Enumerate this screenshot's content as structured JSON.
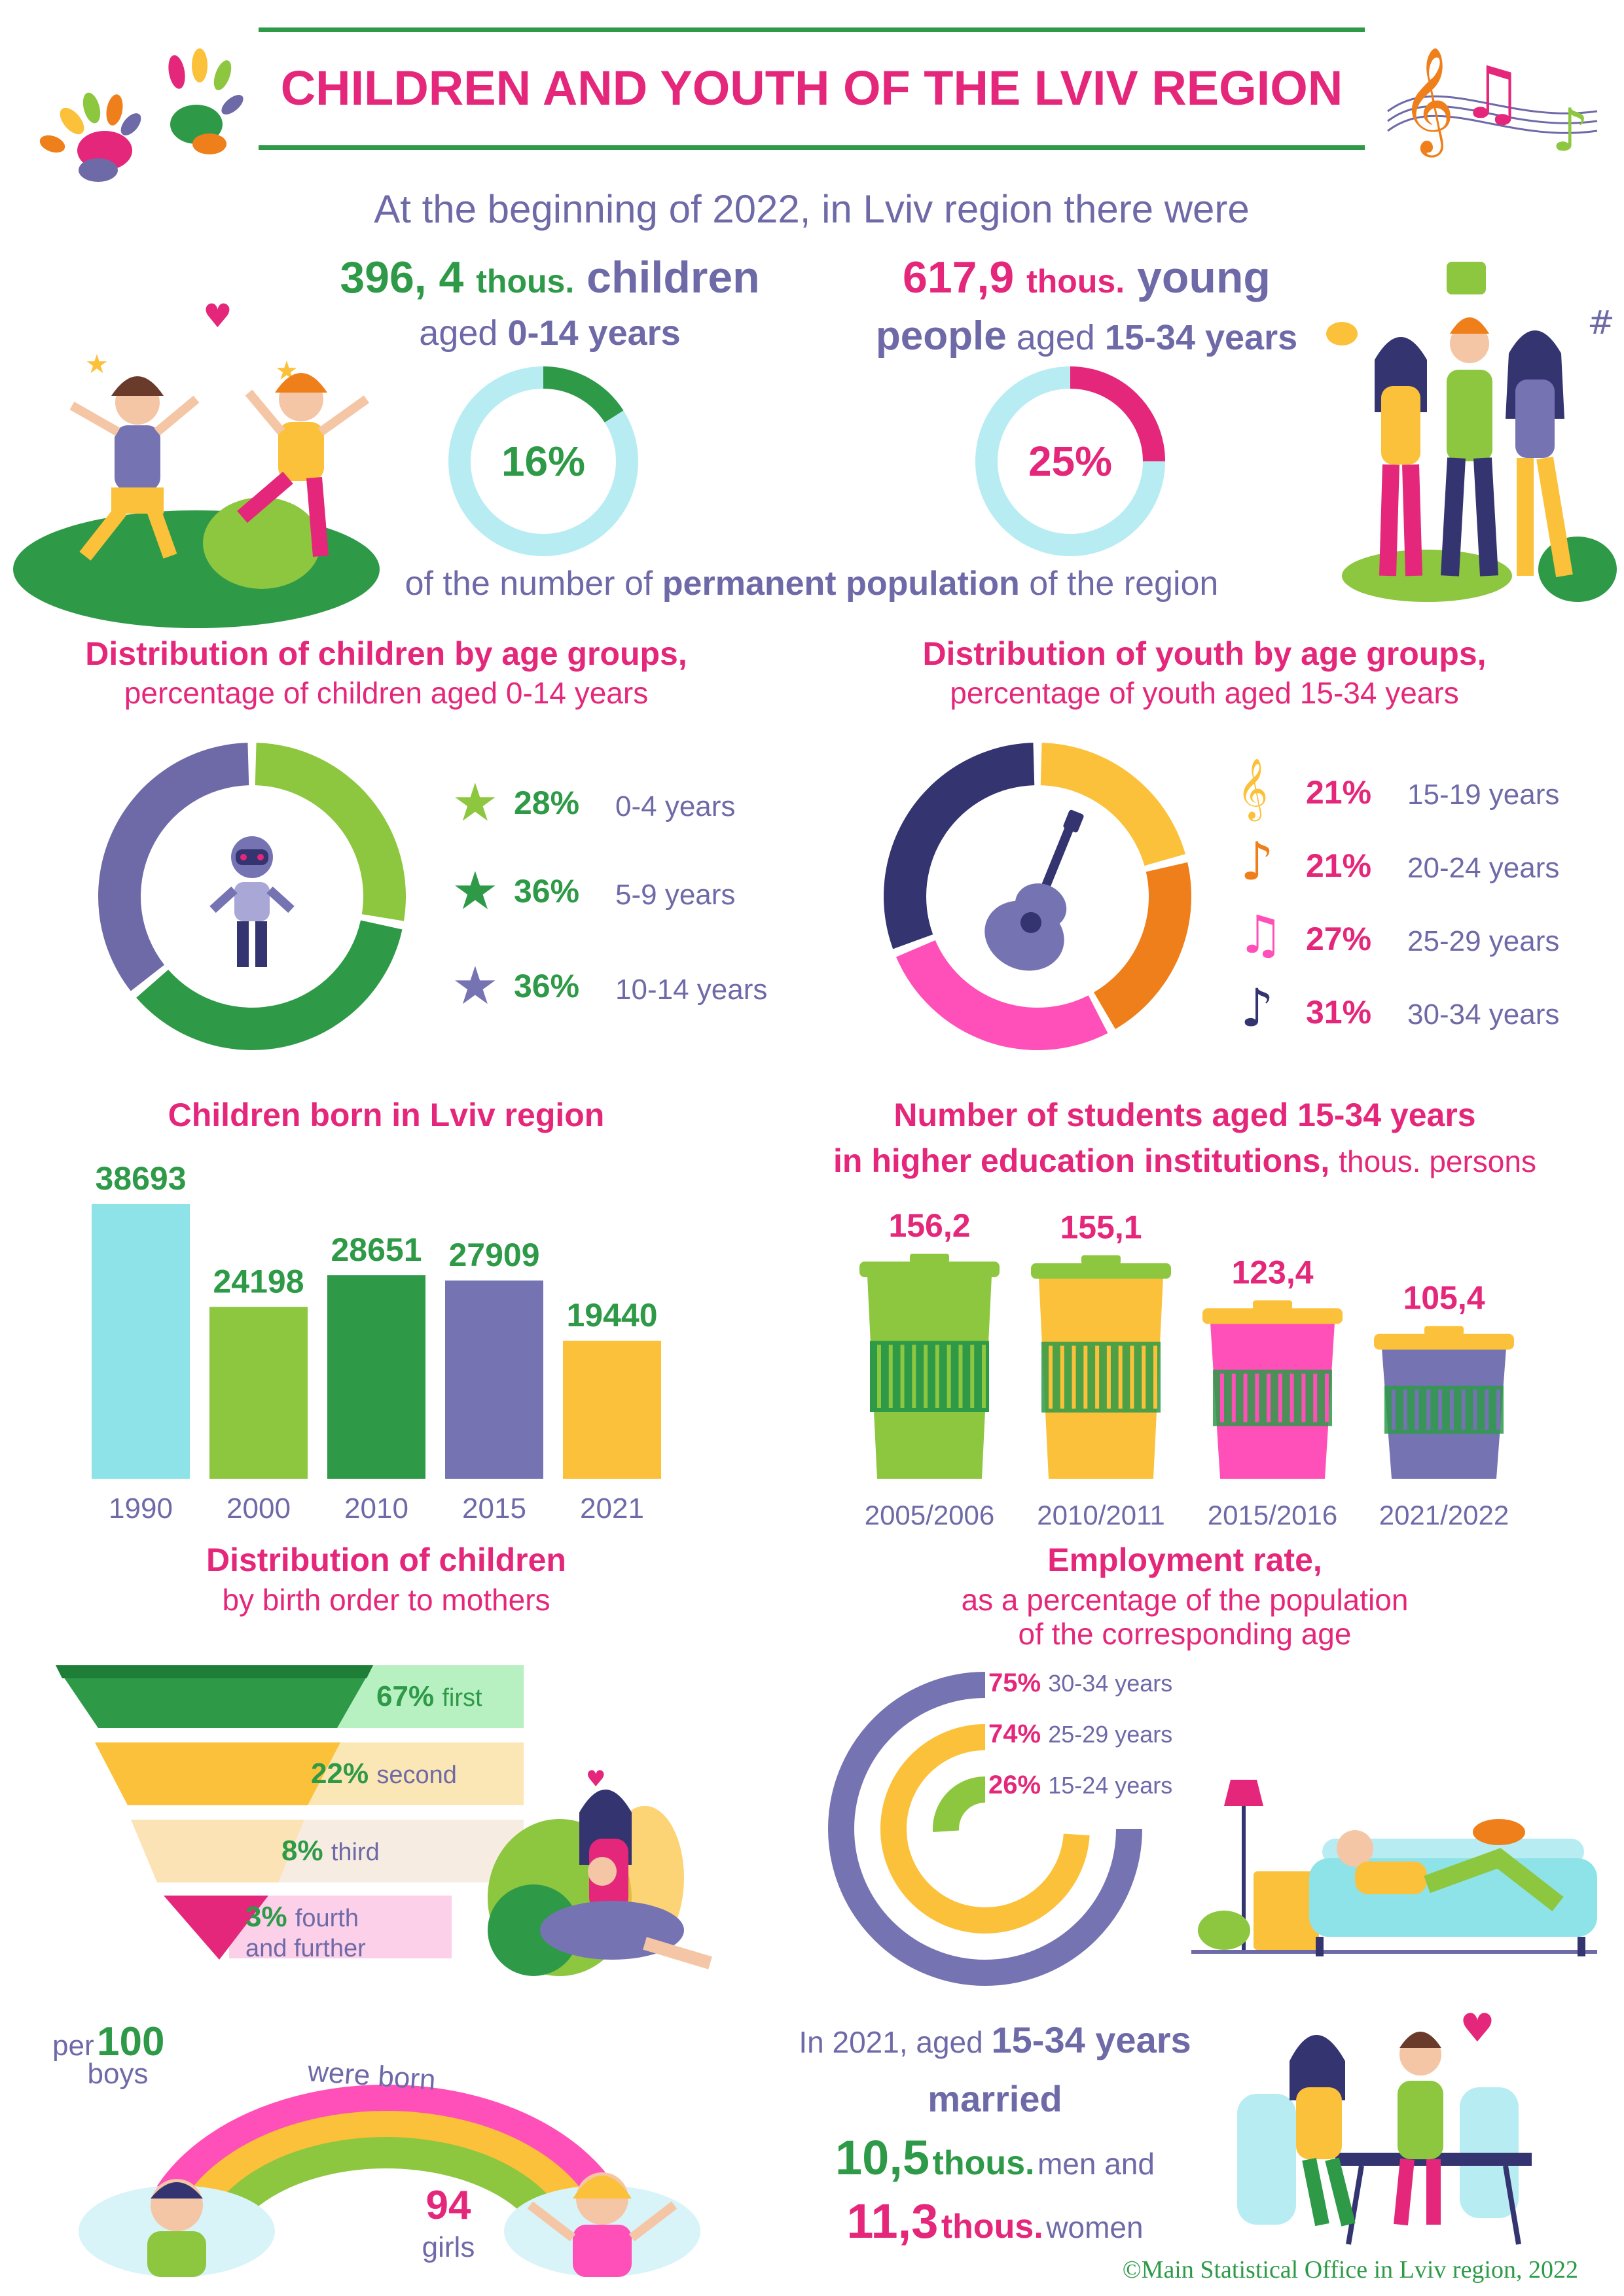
{
  "header": {
    "title": "CHILDREN AND YOUTH OF THE LVIV REGION",
    "intro": "At the beginning of 2022, in Lviv region there were"
  },
  "children_summary": {
    "number": "396, 4",
    "unit": "thous.",
    "word": "children",
    "aged": "aged",
    "range": "0-14 years",
    "share_label": "16%",
    "share": 16
  },
  "youth_summary": {
    "number": "617,9",
    "unit": "thous.",
    "word": "young",
    "word2": "people",
    "aged": "aged",
    "range": "15-34 years",
    "share_label": "25%",
    "share": 25
  },
  "population_note": {
    "pre": "of the number of",
    "bold": "permanent population",
    "post": "of the region"
  },
  "children_age": {
    "title": "Distribution of children by age groups,",
    "subtitle": "percentage of children aged 0-14 years",
    "items": [
      {
        "pct": "28%",
        "value": 28,
        "label": "0-4 years",
        "color": "#8dc63f"
      },
      {
        "pct": "36%",
        "value": 36,
        "label": "5-9 years",
        "color": "#2e9a48"
      },
      {
        "pct": "36%",
        "value": 36,
        "label": "10-14 years",
        "color": "#6e6aa8"
      }
    ]
  },
  "youth_age": {
    "title": "Distribution of youth by age groups,",
    "subtitle": "percentage of  youth aged 15-34 years",
    "items": [
      {
        "pct": "21%",
        "value": 21,
        "label": "15-19 years",
        "color": "#fbc13a"
      },
      {
        "pct": "21%",
        "value": 21,
        "label": "20-24 years",
        "color": "#ef7f1a"
      },
      {
        "pct": "27%",
        "value": 27,
        "label": "25-29 years",
        "color": "#ff4fb8"
      },
      {
        "pct": "31%",
        "value": 31,
        "label": "30-34 years",
        "color": "#343470"
      }
    ]
  },
  "born": {
    "title": "Children born in Lviv region",
    "years": [
      "1990",
      "2000",
      "2010",
      "2015",
      "2021"
    ],
    "labels": [
      "38693",
      "24198",
      "28651",
      "27909",
      "19440"
    ],
    "values": [
      38693,
      24198,
      28651,
      27909,
      19440
    ],
    "colors": [
      "#8de3e8",
      "#8dc63f",
      "#2e9a48",
      "#7673b3",
      "#fbc13a"
    ]
  },
  "students": {
    "title_line1": "Number of students aged 15-34 years",
    "title_line2": "in higher education institutions,",
    "unit": "thous. persons",
    "years": [
      "2005/2006",
      "2010/2011",
      "2015/2016",
      "2021/2022"
    ],
    "labels": [
      "156,2",
      "155,1",
      "123,4",
      "105,4"
    ],
    "values": [
      156.2,
      155.1,
      123.4,
      105.4
    ],
    "colors": [
      "#8dc63f",
      "#fbc13a",
      "#ff4fb8",
      "#7673b3"
    ],
    "lid_colors": [
      "#8dc63f",
      "#8dc63f",
      "#fbc13a",
      "#fbc13a"
    ]
  },
  "birth_order": {
    "title": "Distribution of children",
    "subtitle": "by birth order to mothers",
    "items": [
      {
        "pct": "67%",
        "value": 67,
        "label": "first"
      },
      {
        "pct": "22%",
        "value": 22,
        "label": "second"
      },
      {
        "pct": "8%",
        "value": 8,
        "label": "third"
      },
      {
        "pct": "3%",
        "value": 3,
        "label": "fourth",
        "label2": "and further"
      }
    ]
  },
  "employment": {
    "title": "Employment rate,",
    "subtitle1": "as a percentage of the population",
    "subtitle2": "of the corresponding age",
    "items": [
      {
        "pct": "75%",
        "value": 75,
        "label": "30-34 years",
        "color": "#7673b3"
      },
      {
        "pct": "74%",
        "value": 74,
        "label": "25-29 years",
        "color": "#fbc13a"
      },
      {
        "pct": "26%",
        "value": 26,
        "label": "15-24 years",
        "color": "#8dc63f"
      }
    ]
  },
  "sex_ratio": {
    "per": "per",
    "boys_num": "100",
    "boys": "boys",
    "were_born": "were born",
    "girls_num": "94",
    "girls": "girls"
  },
  "married": {
    "line1_pre": "In 2021, aged",
    "line1_bold": "15-34 years",
    "line2": "married",
    "men_num": "10,5",
    "men_unit": "thous.",
    "men": "men and",
    "women_num": "11,3",
    "women_unit": "thous.",
    "women": "women"
  },
  "footer": "©Main Statistical Office in Lviv region, 2022"
}
